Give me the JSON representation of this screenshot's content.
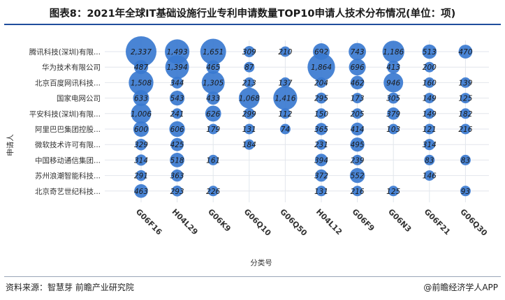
{
  "title": "图表8：2021年全球IT基础设施行业专利申请数量TOP10申请人技术分布情况(单位：项)",
  "source": "资料来源：智慧芽 前瞻产业研究院",
  "brand": "@前瞻经济学人APP",
  "colors": {
    "bubble": "#3a7ad0",
    "grid": "#e2e6ec",
    "header_rule": "#1f4e9c"
  },
  "chart_data": {
    "type": "scatter",
    "subtype": "bubble",
    "xlabel": "分类号",
    "ylabel": "申请人",
    "categories": [
      "G06F16",
      "H04L29",
      "G06K9",
      "G06Q10",
      "G06Q50",
      "H04L12",
      "G06F9",
      "G06N3",
      "G06F21",
      "G06Q30"
    ],
    "applicants": [
      "腾讯科技(深圳)有限...",
      "华为技术有限公司",
      "北京百度网讯科技...",
      "国家电网公司",
      "平安科技(深圳)有限...",
      "阿里巴巴集团控股...",
      "微软技术许可有限...",
      "中国移动通信集团...",
      "苏州浪潮智能科技...",
      "北京奇艺世纪科技..."
    ],
    "values": [
      [
        2337,
        1493,
        1651,
        309,
        210,
        692,
        743,
        1186,
        513,
        470
      ],
      [
        487,
        1394,
        465,
        87,
        null,
        1864,
        696,
        413,
        200,
        null
      ],
      [
        1508,
        344,
        1305,
        213,
        137,
        204,
        462,
        946,
        160,
        139
      ],
      [
        633,
        543,
        433,
        1068,
        1416,
        295,
        173,
        305,
        149,
        125
      ],
      [
        1006,
        241,
        626,
        299,
        112,
        150,
        205,
        379,
        149,
        182
      ],
      [
        600,
        606,
        179,
        131,
        74,
        365,
        414,
        103,
        121,
        216
      ],
      [
        329,
        425,
        null,
        184,
        null,
        231,
        495,
        null,
        314,
        null
      ],
      [
        314,
        518,
        161,
        null,
        null,
        394,
        239,
        null,
        83,
        83
      ],
      [
        291,
        363,
        null,
        null,
        null,
        372,
        552,
        null,
        146,
        null
      ],
      [
        463,
        293,
        226,
        null,
        null,
        131,
        216,
        125,
        null,
        93
      ]
    ],
    "grid": true
  }
}
